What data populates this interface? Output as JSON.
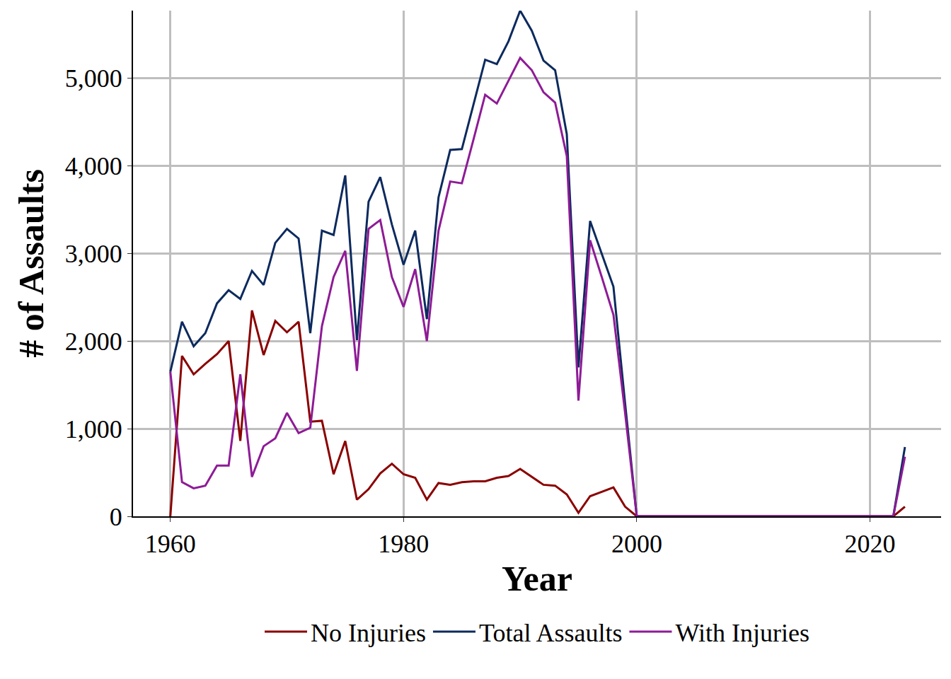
{
  "chart_data": {
    "type": "line",
    "x_label": "Year",
    "y_label": "# of Assaults",
    "x": [
      1960,
      1961,
      1962,
      1963,
      1964,
      1965,
      1966,
      1967,
      1968,
      1969,
      1970,
      1971,
      1972,
      1973,
      1974,
      1975,
      1976,
      1977,
      1978,
      1979,
      1980,
      1981,
      1982,
      1983,
      1984,
      1985,
      1986,
      1987,
      1988,
      1989,
      1990,
      1991,
      1992,
      1993,
      1994,
      1995,
      1996,
      1997,
      1998,
      1999,
      2000,
      2001,
      2002,
      2003,
      2004,
      2005,
      2006,
      2007,
      2008,
      2009,
      2010,
      2011,
      2012,
      2013,
      2014,
      2015,
      2016,
      2017,
      2018,
      2019,
      2020,
      2021,
      2022,
      2023
    ],
    "series": [
      {
        "name": "No Injuries",
        "color": "#8b0000",
        "values": [
          0,
          1830,
          1620,
          1740,
          1850,
          2000,
          860,
          2350,
          1840,
          2230,
          2100,
          2220,
          1080,
          1090,
          480,
          860,
          190,
          310,
          490,
          600,
          480,
          440,
          190,
          380,
          360,
          390,
          400,
          400,
          440,
          460,
          540,
          450,
          360,
          350,
          250,
          40,
          230,
          280,
          330,
          110,
          0,
          0,
          0,
          0,
          0,
          0,
          0,
          0,
          0,
          0,
          0,
          0,
          0,
          0,
          0,
          0,
          0,
          0,
          0,
          0,
          0,
          0,
          0,
          110
        ]
      },
      {
        "name": "Total Assaults",
        "color": "#0c2a5e",
        "values": [
          1650,
          2220,
          1940,
          2090,
          2430,
          2580,
          2480,
          2800,
          2640,
          3120,
          3280,
          3170,
          2090,
          3260,
          3210,
          3890,
          2010,
          3590,
          3870,
          3330,
          2870,
          3260,
          2250,
          3640,
          4180,
          4190,
          4700,
          5210,
          5160,
          5420,
          5770,
          5540,
          5200,
          5090,
          4360,
          1700,
          3370,
          2990,
          2620,
          1290,
          0,
          0,
          0,
          0,
          0,
          0,
          0,
          0,
          0,
          0,
          0,
          0,
          0,
          0,
          0,
          0,
          0,
          0,
          0,
          0,
          0,
          0,
          0,
          790
        ]
      },
      {
        "name": "With Injuries",
        "color": "#8e1b96",
        "values": [
          1650,
          390,
          320,
          350,
          580,
          580,
          1620,
          450,
          800,
          890,
          1180,
          950,
          1010,
          2170,
          2730,
          3030,
          1660,
          3280,
          3380,
          2730,
          2390,
          2820,
          2000,
          3260,
          3820,
          3800,
          4300,
          4810,
          4710,
          4970,
          5230,
          5090,
          4840,
          4720,
          4110,
          1320,
          3150,
          2730,
          2300,
          1180,
          0,
          0,
          0,
          0,
          0,
          0,
          0,
          0,
          0,
          0,
          0,
          0,
          0,
          0,
          0,
          0,
          0,
          0,
          0,
          0,
          0,
          0,
          0,
          680
        ]
      }
    ],
    "xlim": [
      1956.8,
      2026.1
    ],
    "xticks": [
      1960,
      1980,
      2000,
      2020
    ],
    "ylim": [
      0,
      5770
    ],
    "yticks": [
      0,
      {
        "value": 1000,
        "label": "1,000"
      },
      {
        "value": 2000,
        "label": "2,000"
      },
      {
        "value": 3000,
        "label": "3,000"
      },
      {
        "value": 4000,
        "label": "4,000"
      },
      {
        "value": 5000,
        "label": "5,000"
      }
    ],
    "grid": true,
    "legend": "bottom"
  }
}
